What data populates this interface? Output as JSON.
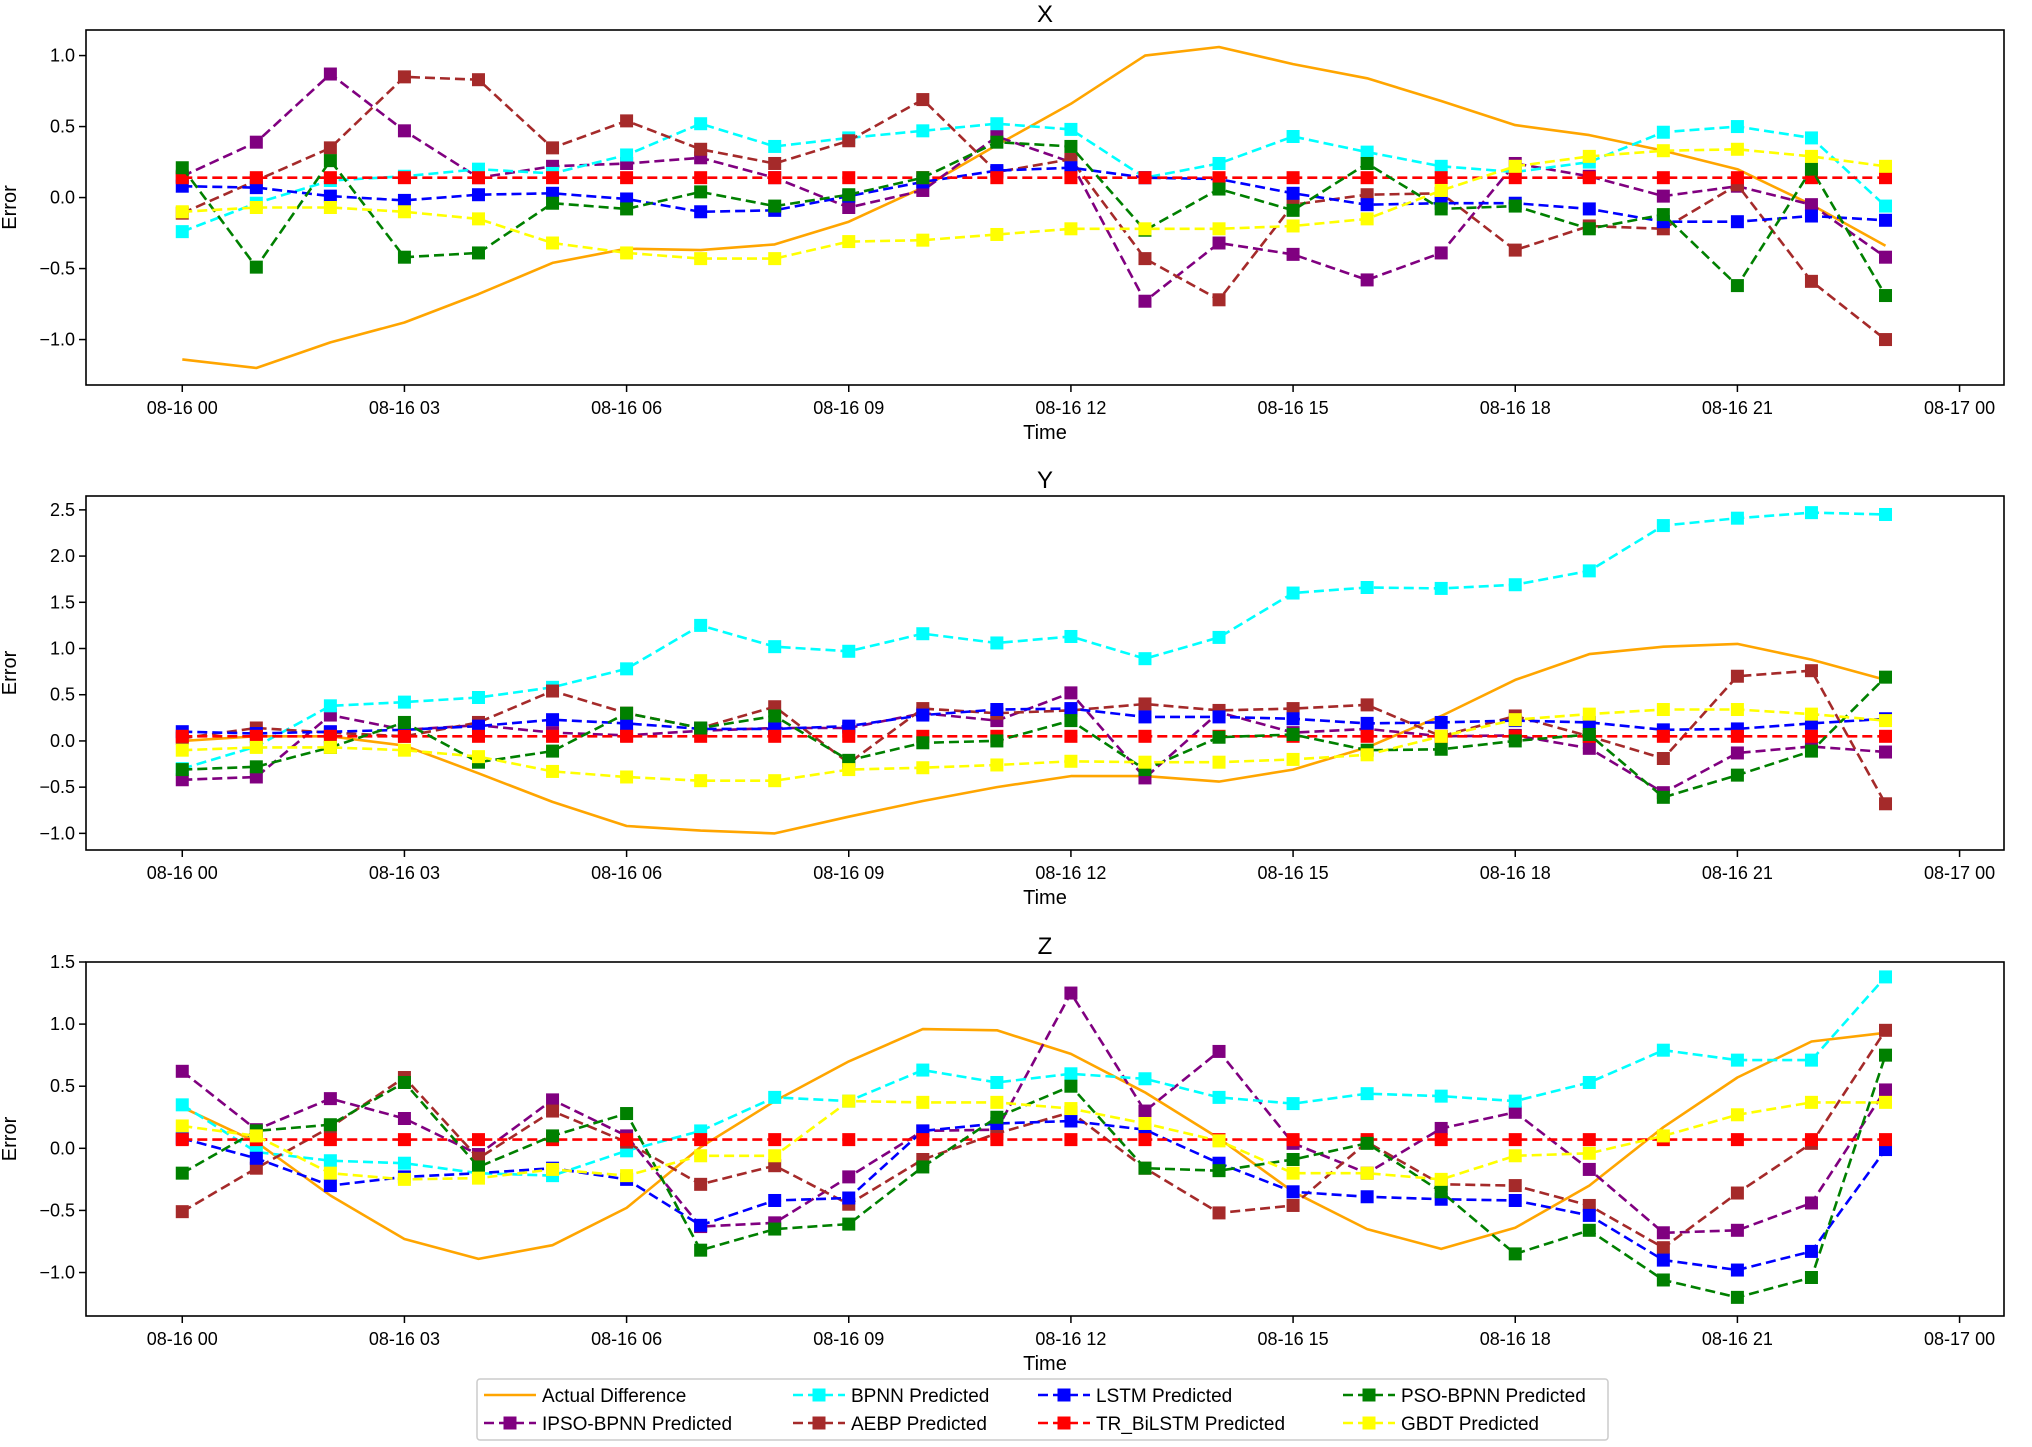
{
  "colors": {
    "actual": "#ffa500",
    "ipso": "#800080",
    "bpnn": "#00ffff",
    "aebp": "#a52a2a",
    "lstm": "#0000ff",
    "trbilstm": "#ff0000",
    "psobpnn": "#008000",
    "gbdt": "#ffff00"
  },
  "chart_data": [
    {
      "type": "line",
      "title": "X",
      "xlabel": "Time",
      "ylabel": "Error",
      "xlim": [
        -1.3,
        24.6
      ],
      "ylim": [
        -1.32,
        1.18
      ],
      "xticks": [
        {
          "v": 0,
          "label": "08-16 00"
        },
        {
          "v": 3,
          "label": "08-16 03"
        },
        {
          "v": 6,
          "label": "08-16 06"
        },
        {
          "v": 9,
          "label": "08-16 09"
        },
        {
          "v": 12,
          "label": "08-16 12"
        },
        {
          "v": 15,
          "label": "08-16 15"
        },
        {
          "v": 18,
          "label": "08-16 18"
        },
        {
          "v": 21,
          "label": "08-16 21"
        },
        {
          "v": 24,
          "label": "08-17 00"
        }
      ],
      "yticks": [
        {
          "v": -1,
          "label": "−1.0"
        },
        {
          "v": -0.5,
          "label": "−0.5"
        },
        {
          "v": 0,
          "label": "0.0"
        },
        {
          "v": 0.5,
          "label": "0.5"
        },
        {
          "v": 1,
          "label": "1.0"
        }
      ],
      "x": [
        0,
        1,
        2,
        3,
        4,
        5,
        6,
        7,
        8,
        9,
        10,
        11,
        12,
        13,
        14,
        15,
        16,
        17,
        18,
        19,
        20,
        21,
        22,
        23
      ],
      "series": [
        {
          "key": "actual",
          "name": "Actual Difference",
          "values": [
            -1.14,
            -1.2,
            -1.02,
            -0.88,
            -0.68,
            -0.46,
            -0.36,
            -0.37,
            -0.33,
            -0.17,
            0.07,
            0.37,
            0.66,
            1.0,
            1.06,
            0.94,
            0.84,
            0.68,
            0.51,
            0.44,
            0.33,
            0.2,
            -0.05,
            -0.34
          ]
        },
        {
          "key": "ipso",
          "name": "IPSO-BPNN Predicted",
          "values": [
            0.15,
            0.39,
            0.87,
            0.47,
            0.14,
            0.22,
            0.24,
            0.28,
            0.14,
            -0.07,
            0.05,
            0.43,
            0.25,
            -0.73,
            -0.32,
            -0.4,
            -0.58,
            -0.39,
            0.24,
            0.15,
            0.01,
            0.08,
            -0.05,
            -0.42
          ]
        },
        {
          "key": "bpnn",
          "name": "BPNN Predicted",
          "values": [
            -0.24,
            -0.04,
            0.12,
            0.15,
            0.2,
            0.17,
            0.3,
            0.52,
            0.36,
            0.42,
            0.47,
            0.52,
            0.48,
            0.14,
            0.24,
            0.43,
            0.32,
            0.22,
            0.18,
            0.25,
            0.46,
            0.5,
            0.42,
            -0.06
          ]
        },
        {
          "key": "aebp",
          "name": "AEBP Predicted",
          "values": [
            -0.11,
            0.12,
            0.35,
            0.85,
            0.83,
            0.35,
            0.54,
            0.34,
            0.24,
            0.4,
            0.69,
            0.18,
            0.27,
            -0.43,
            -0.72,
            -0.05,
            0.02,
            0.03,
            -0.37,
            -0.2,
            -0.22,
            0.09,
            -0.59,
            -1.0
          ]
        },
        {
          "key": "lstm",
          "name": "LSTM Predicted",
          "values": [
            0.08,
            0.07,
            0.01,
            -0.02,
            0.02,
            0.03,
            -0.01,
            -0.1,
            -0.09,
            0.01,
            0.11,
            0.19,
            0.21,
            0.14,
            0.13,
            0.03,
            -0.05,
            -0.04,
            -0.04,
            -0.08,
            -0.17,
            -0.17,
            -0.13,
            -0.16
          ]
        },
        {
          "key": "trbilstm",
          "name": "TR_BiLSTM Predicted",
          "values": [
            0.14,
            0.14,
            0.14,
            0.14,
            0.14,
            0.14,
            0.14,
            0.14,
            0.14,
            0.14,
            0.14,
            0.14,
            0.14,
            0.14,
            0.14,
            0.14,
            0.14,
            0.14,
            0.14,
            0.14,
            0.14,
            0.14,
            0.14,
            0.14
          ]
        },
        {
          "key": "psobpnn",
          "name": "PSO-BPNN Predicted",
          "values": [
            0.21,
            -0.49,
            0.26,
            -0.42,
            -0.39,
            -0.04,
            -0.08,
            0.04,
            -0.06,
            0.02,
            0.14,
            0.39,
            0.36,
            -0.23,
            0.06,
            -0.09,
            0.24,
            -0.08,
            -0.06,
            -0.22,
            -0.12,
            -0.62,
            0.2,
            -0.69
          ]
        },
        {
          "key": "gbdt",
          "name": "GBDT Predicted",
          "values": [
            -0.1,
            -0.07,
            -0.07,
            -0.1,
            -0.15,
            -0.32,
            -0.39,
            -0.43,
            -0.43,
            -0.31,
            -0.3,
            -0.26,
            -0.22,
            -0.22,
            -0.22,
            -0.2,
            -0.15,
            0.05,
            0.22,
            0.29,
            0.33,
            0.34,
            0.29,
            0.22
          ]
        }
      ]
    },
    {
      "type": "line",
      "title": "Y",
      "xlabel": "Time",
      "ylabel": "Error",
      "xlim": [
        -1.3,
        24.6
      ],
      "ylim": [
        -1.18,
        2.65
      ],
      "xticks": [
        {
          "v": 0,
          "label": "08-16 00"
        },
        {
          "v": 3,
          "label": "08-16 03"
        },
        {
          "v": 6,
          "label": "08-16 06"
        },
        {
          "v": 9,
          "label": "08-16 09"
        },
        {
          "v": 12,
          "label": "08-16 12"
        },
        {
          "v": 15,
          "label": "08-16 15"
        },
        {
          "v": 18,
          "label": "08-16 18"
        },
        {
          "v": 21,
          "label": "08-16 21"
        },
        {
          "v": 24,
          "label": "08-17 00"
        }
      ],
      "yticks": [
        {
          "v": -1,
          "label": "−1.0"
        },
        {
          "v": -0.5,
          "label": "−0.5"
        },
        {
          "v": 0,
          "label": "0.0"
        },
        {
          "v": 0.5,
          "label": "0.5"
        },
        {
          "v": 1,
          "label": "1.0"
        },
        {
          "v": 1.5,
          "label": "1.5"
        },
        {
          "v": 2,
          "label": "2.0"
        },
        {
          "v": 2.5,
          "label": "2.5"
        }
      ],
      "x": [
        0,
        1,
        2,
        3,
        4,
        5,
        6,
        7,
        8,
        9,
        10,
        11,
        12,
        13,
        14,
        15,
        16,
        17,
        18,
        19,
        20,
        21,
        22,
        23
      ],
      "series": [
        {
          "key": "actual",
          "name": "Actual Difference",
          "values": [
            0.0,
            0.05,
            0.05,
            -0.05,
            -0.35,
            -0.66,
            -0.92,
            -0.97,
            -1.0,
            -0.82,
            -0.65,
            -0.5,
            -0.38,
            -0.38,
            -0.44,
            -0.31,
            -0.07,
            0.27,
            0.66,
            0.94,
            1.02,
            1.05,
            0.88,
            0.66
          ]
        },
        {
          "key": "ipso",
          "name": "IPSO-BPNN Predicted",
          "values": [
            -0.42,
            -0.39,
            0.28,
            0.12,
            0.17,
            0.09,
            0.06,
            0.11,
            0.14,
            0.14,
            0.3,
            0.22,
            0.52,
            -0.4,
            0.31,
            0.09,
            0.13,
            0.05,
            0.06,
            -0.08,
            -0.56,
            -0.13,
            -0.06,
            -0.12
          ]
        },
        {
          "key": "bpnn",
          "name": "BPNN Predicted",
          "values": [
            -0.3,
            -0.06,
            0.38,
            0.42,
            0.47,
            0.58,
            0.78,
            1.25,
            1.02,
            0.97,
            1.16,
            1.06,
            1.13,
            0.89,
            1.12,
            1.6,
            1.66,
            1.65,
            1.69,
            1.84,
            2.33,
            2.41,
            2.47,
            2.45
          ]
        },
        {
          "key": "aebp",
          "name": "AEBP Predicted",
          "values": [
            0.03,
            0.14,
            0.09,
            0.05,
            0.2,
            0.54,
            0.3,
            0.14,
            0.37,
            -0.24,
            0.35,
            0.3,
            0.33,
            0.4,
            0.33,
            0.35,
            0.39,
            0.05,
            0.27,
            0.05,
            -0.19,
            0.7,
            0.76,
            -0.68
          ]
        },
        {
          "key": "lstm",
          "name": "LSTM Predicted",
          "values": [
            0.1,
            0.08,
            0.1,
            0.12,
            0.16,
            0.23,
            0.19,
            0.13,
            0.13,
            0.16,
            0.28,
            0.34,
            0.35,
            0.26,
            0.26,
            0.24,
            0.19,
            0.2,
            0.22,
            0.2,
            0.12,
            0.13,
            0.19,
            0.24
          ]
        },
        {
          "key": "trbilstm",
          "name": "TR_BiLSTM Predicted",
          "values": [
            0.05,
            0.05,
            0.05,
            0.05,
            0.05,
            0.05,
            0.05,
            0.05,
            0.05,
            0.05,
            0.05,
            0.05,
            0.05,
            0.05,
            0.05,
            0.05,
            0.05,
            0.05,
            0.05,
            0.05,
            0.05,
            0.05,
            0.05,
            0.05
          ]
        },
        {
          "key": "psobpnn",
          "name": "PSO-BPNN Predicted",
          "values": [
            -0.31,
            -0.28,
            -0.07,
            0.2,
            -0.23,
            -0.11,
            0.3,
            0.14,
            0.27,
            -0.21,
            -0.02,
            0.0,
            0.22,
            -0.31,
            0.04,
            0.07,
            -0.1,
            -0.09,
            0.0,
            0.07,
            -0.61,
            -0.37,
            -0.11,
            0.69
          ]
        },
        {
          "key": "gbdt",
          "name": "GBDT Predicted",
          "values": [
            -0.1,
            -0.07,
            -0.07,
            -0.1,
            -0.17,
            -0.33,
            -0.39,
            -0.43,
            -0.43,
            -0.31,
            -0.29,
            -0.26,
            -0.22,
            -0.23,
            -0.23,
            -0.2,
            -0.15,
            0.05,
            0.23,
            0.29,
            0.34,
            0.34,
            0.29,
            0.22
          ]
        }
      ]
    },
    {
      "type": "line",
      "title": "Z",
      "xlabel": "Time",
      "ylabel": "Error",
      "xlim": [
        -1.3,
        24.6
      ],
      "ylim": [
        -1.35,
        1.5
      ],
      "xticks": [
        {
          "v": 0,
          "label": "08-16 00"
        },
        {
          "v": 3,
          "label": "08-16 03"
        },
        {
          "v": 6,
          "label": "08-16 06"
        },
        {
          "v": 9,
          "label": "08-16 09"
        },
        {
          "v": 12,
          "label": "08-16 12"
        },
        {
          "v": 15,
          "label": "08-16 15"
        },
        {
          "v": 18,
          "label": "08-16 18"
        },
        {
          "v": 21,
          "label": "08-16 21"
        },
        {
          "v": 24,
          "label": "08-17 00"
        }
      ],
      "yticks": [
        {
          "v": -1,
          "label": "−1.0"
        },
        {
          "v": -0.5,
          "label": "−0.5"
        },
        {
          "v": 0,
          "label": "0.0"
        },
        {
          "v": 0.5,
          "label": "0.5"
        },
        {
          "v": 1,
          "label": "1.0"
        },
        {
          "v": 1.5,
          "label": "1.5"
        }
      ],
      "x": [
        0,
        1,
        2,
        3,
        4,
        5,
        6,
        7,
        8,
        9,
        10,
        11,
        12,
        13,
        14,
        15,
        16,
        17,
        18,
        19,
        20,
        21,
        22,
        23
      ],
      "series": [
        {
          "key": "actual",
          "name": "Actual Difference",
          "values": [
            0.33,
            0.05,
            -0.38,
            -0.73,
            -0.89,
            -0.78,
            -0.48,
            0.01,
            0.38,
            0.7,
            0.96,
            0.95,
            0.76,
            0.45,
            0.08,
            -0.35,
            -0.65,
            -0.81,
            -0.64,
            -0.3,
            0.17,
            0.57,
            0.86,
            0.93
          ]
        },
        {
          "key": "ipso",
          "name": "IPSO-BPNN Predicted",
          "values": [
            0.62,
            0.15,
            0.4,
            0.24,
            -0.05,
            0.39,
            0.1,
            -0.63,
            -0.6,
            -0.23,
            0.14,
            0.15,
            1.25,
            0.3,
            0.78,
            0.04,
            -0.2,
            0.16,
            0.29,
            -0.17,
            -0.68,
            -0.66,
            -0.44,
            0.47
          ]
        },
        {
          "key": "bpnn",
          "name": "BPNN Predicted",
          "values": [
            0.35,
            -0.03,
            -0.1,
            -0.12,
            -0.2,
            -0.22,
            -0.02,
            0.14,
            0.41,
            0.38,
            0.63,
            0.53,
            0.6,
            0.56,
            0.41,
            0.36,
            0.44,
            0.42,
            0.38,
            0.53,
            0.79,
            0.71,
            0.71,
            1.38
          ]
        },
        {
          "key": "aebp",
          "name": "AEBP Predicted",
          "values": [
            -0.51,
            -0.16,
            0.17,
            0.57,
            -0.08,
            0.3,
            0.05,
            -0.29,
            -0.14,
            -0.45,
            -0.09,
            0.12,
            0.29,
            -0.16,
            -0.52,
            -0.46,
            0.05,
            -0.29,
            -0.3,
            -0.46,
            -0.8,
            -0.36,
            0.04,
            0.95
          ]
        },
        {
          "key": "lstm",
          "name": "LSTM Predicted",
          "values": [
            0.08,
            -0.08,
            -0.3,
            -0.23,
            -0.2,
            -0.16,
            -0.25,
            -0.62,
            -0.42,
            -0.4,
            0.14,
            0.2,
            0.22,
            0.15,
            -0.12,
            -0.35,
            -0.39,
            -0.41,
            -0.42,
            -0.54,
            -0.9,
            -0.98,
            -0.83,
            -0.01
          ]
        },
        {
          "key": "trbilstm",
          "name": "TR_BiLSTM Predicted",
          "values": [
            0.07,
            0.07,
            0.07,
            0.07,
            0.07,
            0.07,
            0.07,
            0.07,
            0.07,
            0.07,
            0.07,
            0.07,
            0.07,
            0.07,
            0.07,
            0.07,
            0.07,
            0.07,
            0.07,
            0.07,
            0.07,
            0.07,
            0.07,
            0.07
          ]
        },
        {
          "key": "psobpnn",
          "name": "PSO-BPNN Predicted",
          "values": [
            -0.2,
            0.14,
            0.19,
            0.53,
            -0.15,
            0.1,
            0.28,
            -0.82,
            -0.65,
            -0.61,
            -0.15,
            0.25,
            0.5,
            -0.16,
            -0.18,
            -0.09,
            0.04,
            -0.35,
            -0.85,
            -0.66,
            -1.06,
            -1.2,
            -1.04,
            0.75
          ]
        },
        {
          "key": "gbdt",
          "name": "GBDT Predicted",
          "values": [
            0.18,
            0.1,
            -0.2,
            -0.25,
            -0.24,
            -0.17,
            -0.22,
            -0.06,
            -0.06,
            0.38,
            0.37,
            0.37,
            0.32,
            0.2,
            0.06,
            -0.2,
            -0.2,
            -0.25,
            -0.06,
            -0.04,
            0.1,
            0.27,
            0.37,
            0.37
          ]
        }
      ]
    }
  ],
  "legend": {
    "position": "bottom-center",
    "entries": [
      {
        "key": "actual",
        "label": "Actual Difference",
        "style": "solid",
        "marker": false
      },
      {
        "key": "ipso",
        "label": "IPSO-BPNN Predicted",
        "style": "dashed",
        "marker": true
      },
      {
        "key": "bpnn",
        "label": "BPNN Predicted",
        "style": "dashed",
        "marker": true
      },
      {
        "key": "aebp",
        "label": "AEBP Predicted",
        "style": "dashed",
        "marker": true
      },
      {
        "key": "lstm",
        "label": "LSTM Predicted",
        "style": "dashed",
        "marker": true
      },
      {
        "key": "trbilstm",
        "label": "TR_BiLSTM Predicted",
        "style": "dashed",
        "marker": true
      },
      {
        "key": "psobpnn",
        "label": "PSO-BPNN Predicted",
        "style": "dashed",
        "marker": true
      },
      {
        "key": "gbdt",
        "label": "GBDT Predicted",
        "style": "dashed",
        "marker": true
      }
    ]
  }
}
